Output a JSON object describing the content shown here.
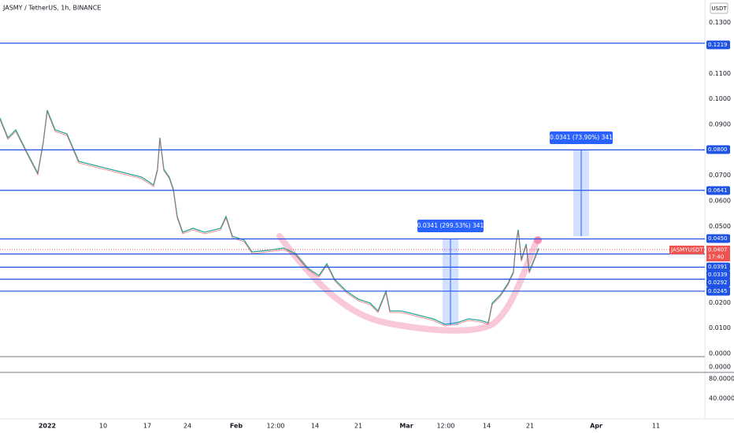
{
  "header": {
    "title": "JASMY / TetherUS, 1h, BINANCE",
    "currency": "USDT"
  },
  "price_axis": {
    "ticks": [
      {
        "value": 0.13,
        "label": "0.1300"
      },
      {
        "value": 0.11,
        "label": "0.1100"
      },
      {
        "value": 0.1,
        "label": "0.1000"
      },
      {
        "value": 0.09,
        "label": "0.0900"
      },
      {
        "value": 0.07,
        "label": "0.0700"
      },
      {
        "value": 0.06,
        "label": "0.0600"
      },
      {
        "value": 0.05,
        "label": "0.0500"
      },
      {
        "value": 0.02,
        "label": "0.0200"
      },
      {
        "value": 0.01,
        "label": "0.0100"
      },
      {
        "value": 0,
        "label": "0.0000"
      }
    ]
  },
  "levels": [
    {
      "value": 0.1219,
      "label": "0.1219"
    },
    {
      "value": 0.08,
      "label": "0.0800"
    },
    {
      "value": 0.0641,
      "label": "0.0641"
    },
    {
      "value": 0.045,
      "label": "0.0450"
    },
    {
      "value": 0.0391,
      "label": "0.0391"
    },
    {
      "value": 0.0339,
      "label": "0.0339"
    },
    {
      "value": 0.0292,
      "label": "0.0292"
    },
    {
      "value": 0.0245,
      "label": "0.0245"
    }
  ],
  "current": {
    "symbol": "JASMYUSDT",
    "price": "0.0407",
    "countdown": "17:40"
  },
  "measures": [
    "0.0341 (299.53%) 341",
    "0.0341 (73.90%) 341"
  ],
  "lower_pane": {
    "ticks": [
      "0.0000",
      "80.0000",
      "40.0000"
    ]
  },
  "time_axis": [
    "2022",
    "10",
    "17",
    "24",
    "Feb",
    "12:00",
    "14",
    "21",
    "Mar",
    "12:00",
    "14",
    "21",
    "Apr",
    "11"
  ]
}
